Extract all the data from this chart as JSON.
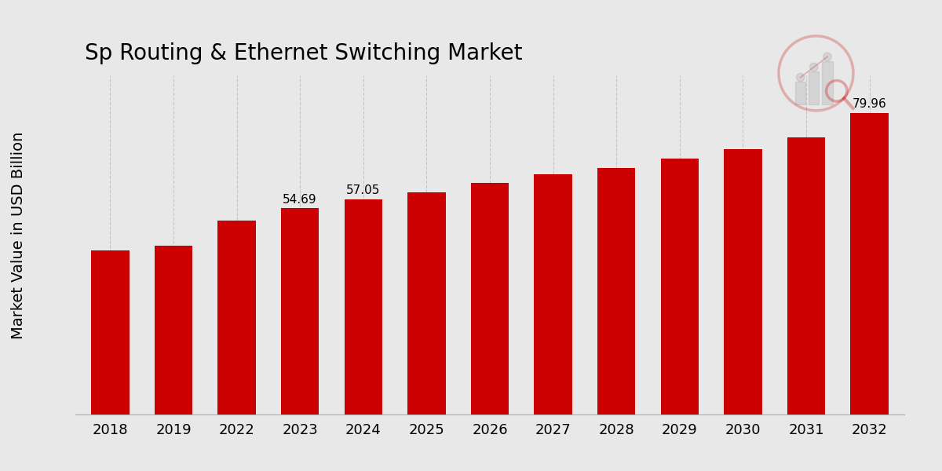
{
  "title": "Sp Routing & Ethernet Switching Market",
  "ylabel": "Market Value in USD Billion",
  "categories": [
    "2018",
    "2019",
    "2022",
    "2023",
    "2024",
    "2025",
    "2026",
    "2027",
    "2028",
    "2029",
    "2030",
    "2031",
    "2032"
  ],
  "values": [
    43.5,
    44.8,
    51.5,
    54.69,
    57.05,
    59.0,
    61.5,
    63.8,
    65.5,
    68.0,
    70.5,
    73.5,
    79.96
  ],
  "bar_color": "#CC0000",
  "label_map": {
    "2023": "54.69",
    "2024": "57.05",
    "2032": "79.96"
  },
  "bottom_bar_color": "#CC0000",
  "ylim": [
    0,
    90
  ],
  "title_fontsize": 20,
  "tick_fontsize": 13,
  "ylabel_fontsize": 14,
  "grid_color": "#bbbbbb",
  "bg_color": "#e8e8e8"
}
